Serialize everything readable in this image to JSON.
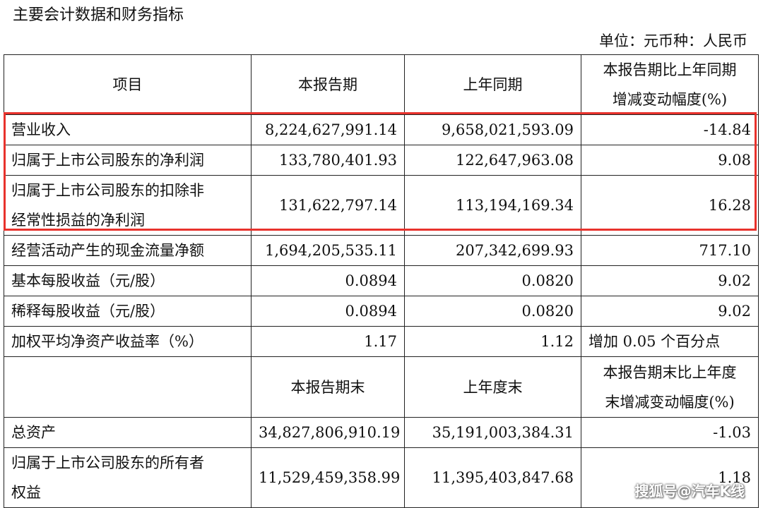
{
  "title": "主要会计数据和财务指标",
  "unit": "单位：元币种：人民币",
  "header1": {
    "item": "项目",
    "current": "本报告期",
    "prior": "上年同期",
    "change_line1": "本报告期比上年同期",
    "change_line2": "增减变动幅度(%)"
  },
  "rows1": [
    {
      "label": "营业收入",
      "current": "8,224,627,991.14",
      "prior": "9,658,021,593.09",
      "change": "-14.84"
    },
    {
      "label": "归属于上市公司股东的净利润",
      "current": "133,780,401.93",
      "prior": "122,647,963.08",
      "change": "9.08"
    },
    {
      "label_line1": "归属于上市公司股东的扣除非",
      "label_line2": "经常性损益的净利润",
      "current": "131,622,797.14",
      "prior": "113,194,169.34",
      "change": "16.28"
    },
    {
      "label": "经营活动产生的现金流量净额",
      "current": "1,694,205,535.11",
      "prior": "207,342,699.93",
      "change": "717.10"
    },
    {
      "label": "基本每股收益（元/股）",
      "current": "0.0894",
      "prior": "0.0820",
      "change": "9.02"
    },
    {
      "label": "稀释每股收益（元/股）",
      "current": "0.0894",
      "prior": "0.0820",
      "change": "9.02"
    },
    {
      "label": "加权平均净资产收益率（%）",
      "current": "1.17",
      "prior": "1.12",
      "change": "增加 0.05 个百分点"
    }
  ],
  "header2": {
    "item": "",
    "current": "本报告期末",
    "prior": "上年度末",
    "change_line1": "本报告期末比上年度",
    "change_line2": "末增减变动幅度(%)"
  },
  "rows2": [
    {
      "label": "总资产",
      "current": "34,827,806,910.19",
      "prior": "35,191,003,384.31",
      "change": "-1.03"
    },
    {
      "label_line1": "归属于上市公司股东的所有者",
      "label_line2": "权益",
      "current": "11,529,459,358.99",
      "prior": "11,395,403,847.68",
      "change": "1.18"
    }
  ],
  "watermark": "搜狐号@汽车K线",
  "highlight_color": "#e8322c"
}
